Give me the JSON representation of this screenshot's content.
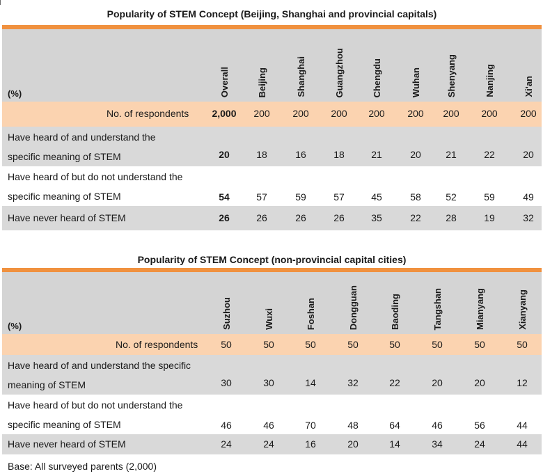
{
  "table1": {
    "title": "Popularity of STEM Concept (Beijing, Shanghai and provincial capitals)",
    "unit": "(%)",
    "columns": [
      "Overall",
      "Beijing",
      "Shanghai",
      "Guangzhou",
      "Chengdu",
      "Wuhan",
      "Shenyang",
      "Nanjing",
      "Xi'an"
    ],
    "respondents": {
      "label": "No. of respondents",
      "values": [
        "2,000",
        "200",
        "200",
        "200",
        "200",
        "200",
        "200",
        "200",
        "200"
      ]
    },
    "rows": [
      {
        "label_line1": "Have heard of and understand the",
        "label_line2": "specific meaning of STEM",
        "values": [
          "20",
          "18",
          "16",
          "18",
          "21",
          "20",
          "21",
          "22",
          "20"
        ]
      },
      {
        "label_line1": "Have heard of but do not understand the",
        "label_line2": "specific meaning of STEM",
        "values": [
          "54",
          "57",
          "59",
          "57",
          "45",
          "58",
          "52",
          "59",
          "49"
        ]
      },
      {
        "label_line1": "Have never heard of STEM",
        "values": [
          "26",
          "26",
          "26",
          "26",
          "35",
          "22",
          "28",
          "19",
          "32"
        ]
      }
    ]
  },
  "table2": {
    "title": "Popularity of STEM Concept (non-provincial capital cities)",
    "unit": "(%)",
    "columns": [
      "Suzhou",
      "Wuxi",
      "Foshan",
      "Dongguan",
      "Baoding",
      "Tangshan",
      "Mianyang",
      "Xianyang"
    ],
    "respondents": {
      "label": "No. of respondents",
      "values": [
        "50",
        "50",
        "50",
        "50",
        "50",
        "50",
        "50",
        "50"
      ]
    },
    "rows": [
      {
        "label_line1": "Have heard of and understand the specific",
        "label_line2": "meaning of STEM",
        "values": [
          "30",
          "30",
          "14",
          "32",
          "22",
          "20",
          "20",
          "12"
        ]
      },
      {
        "label_line1": "Have heard of but do not understand the",
        "label_line2": "specific meaning of STEM",
        "values": [
          "46",
          "46",
          "70",
          "48",
          "64",
          "46",
          "56",
          "44"
        ]
      },
      {
        "label_line1": "Have never heard of STEM",
        "values": [
          "24",
          "24",
          "16",
          "20",
          "14",
          "34",
          "24",
          "44"
        ]
      }
    ]
  },
  "footer": {
    "base": "Base: All surveyed parents (2,000)"
  }
}
